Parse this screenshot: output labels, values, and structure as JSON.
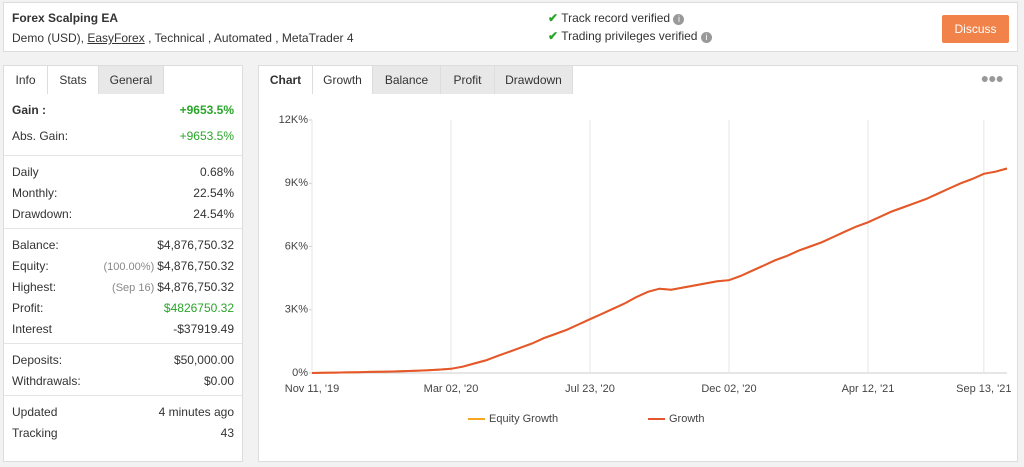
{
  "header": {
    "title": "Forex Scalping EA",
    "account": "Demo (USD),",
    "broker": "EasyForex",
    "tags": ", Technical , Automated , MetaTrader 4",
    "verified": [
      "Track record verified",
      "Trading privileges verified"
    ],
    "button": "Discuss"
  },
  "left_tabs": [
    "Info",
    "Stats",
    "General"
  ],
  "stats": [
    [
      {
        "label": "Gain :",
        "value": "+9653.5%",
        "value_color": "#2aa52a",
        "bold": true
      },
      {
        "label": "Abs. Gain:",
        "value": "+9653.5%",
        "value_color": "#2aa52a"
      }
    ],
    [
      {
        "label": "Daily",
        "value": "0.68%"
      },
      {
        "label": "Monthly:",
        "value": "22.54%"
      },
      {
        "label": "Drawdown:",
        "value": "24.54%"
      }
    ],
    [
      {
        "label": "Balance:",
        "value": "$4,876,750.32"
      },
      {
        "label": "Equity:",
        "note": "(100.00%)",
        "value": "$4,876,750.32"
      },
      {
        "label": "Highest:",
        "note": "(Sep 16)",
        "value": "$4,876,750.32"
      },
      {
        "label": "Profit:",
        "value": "$4826750.32",
        "value_color": "#2aa52a"
      },
      {
        "label": "Interest",
        "value": "-$37919.49"
      }
    ],
    [
      {
        "label": "Deposits:",
        "value": "$50,000.00"
      },
      {
        "label": "Withdrawals:",
        "value": "$0.00"
      }
    ],
    [
      {
        "label": "Updated",
        "value": "4 minutes ago"
      },
      {
        "label": "Tracking",
        "value": "43"
      }
    ]
  ],
  "chart_tabs": [
    "Chart",
    "Growth",
    "Balance",
    "Profit",
    "Drawdown"
  ],
  "chart_data": {
    "type": "line",
    "categories": [
      "Nov 11, '19",
      null,
      null,
      null,
      null,
      null,
      null,
      null,
      null,
      null,
      null,
      null,
      "Mar 02, '20",
      null,
      null,
      null,
      null,
      null,
      null,
      null,
      null,
      null,
      null,
      null,
      "Jul 23, '20",
      null,
      null,
      null,
      null,
      null,
      null,
      null,
      null,
      null,
      null,
      null,
      "Dec 02, '20",
      null,
      null,
      null,
      null,
      null,
      null,
      null,
      null,
      null,
      null,
      null,
      "Apr 12, '21",
      null,
      null,
      null,
      null,
      null,
      null,
      null,
      null,
      null,
      "Sep 13, '21",
      null,
      null
    ],
    "series": [
      {
        "name": "Equity Growth",
        "color": "#f5a623",
        "values": [
          0,
          10,
          20,
          30,
          40,
          50,
          60,
          70,
          90,
          110,
          130,
          160,
          200,
          300,
          450,
          600,
          800,
          1000,
          1200,
          1400,
          1650,
          1850,
          2050,
          2300,
          2550,
          2800,
          3050,
          3300,
          3600,
          3850,
          4000,
          3950,
          4050,
          4150,
          4250,
          4350,
          4400,
          4600,
          4850,
          5100,
          5350,
          5550,
          5800,
          6000,
          6200,
          6450,
          6700,
          6950,
          7150,
          7400,
          7650,
          7850,
          8050,
          8250,
          8500,
          8750,
          9000,
          9200,
          9450,
          9550,
          9700
        ]
      },
      {
        "name": "Growth",
        "color": "#e4572e",
        "values": [
          0,
          10,
          20,
          30,
          40,
          50,
          60,
          70,
          90,
          110,
          130,
          160,
          200,
          300,
          450,
          600,
          800,
          1000,
          1200,
          1400,
          1650,
          1850,
          2050,
          2300,
          2550,
          2800,
          3050,
          3300,
          3600,
          3850,
          4000,
          3950,
          4050,
          4150,
          4250,
          4350,
          4400,
          4600,
          4850,
          5100,
          5350,
          5550,
          5800,
          6000,
          6200,
          6450,
          6700,
          6950,
          7150,
          7400,
          7650,
          7850,
          8050,
          8250,
          8500,
          8750,
          9000,
          9200,
          9450,
          9550,
          9700
        ]
      }
    ],
    "ylim": [
      0,
      12000
    ],
    "yticks": [
      {
        "value": 0,
        "label": "0%"
      },
      {
        "value": 3000,
        "label": "3K%"
      },
      {
        "value": 6000,
        "label": "6K%"
      },
      {
        "value": 9000,
        "label": "9K%"
      },
      {
        "value": 12000,
        "label": "12K%"
      }
    ],
    "grid": true
  }
}
